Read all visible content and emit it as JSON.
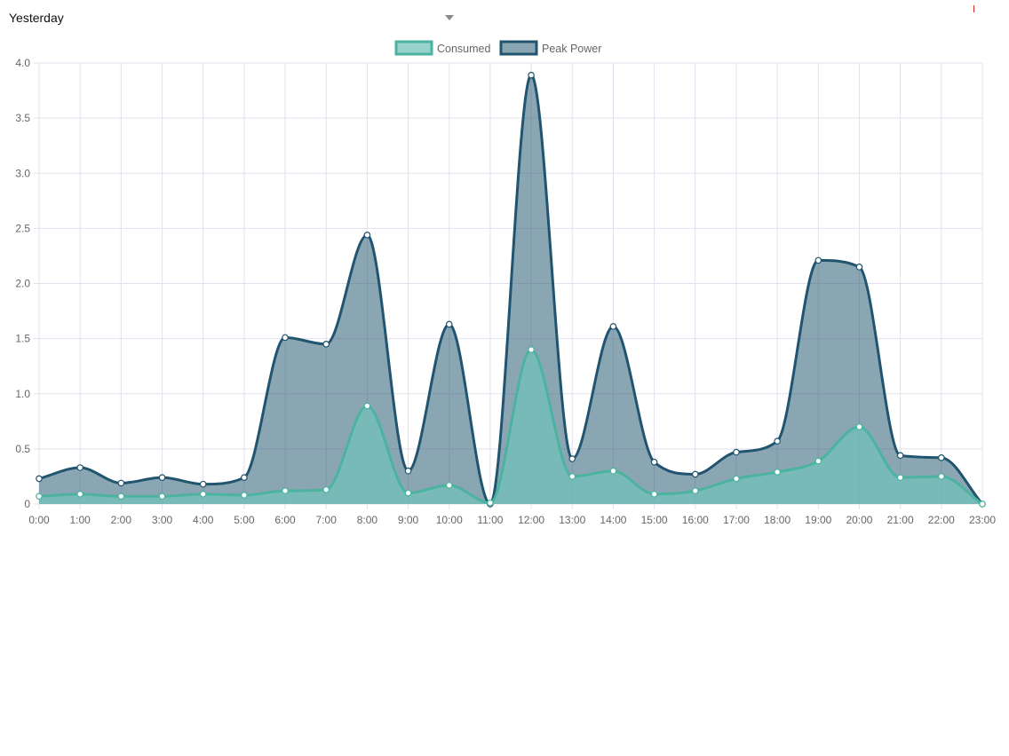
{
  "period_select": {
    "value": "Yesterday",
    "caret_icon": "chevron-down-icon"
  },
  "chart_data": {
    "type": "area",
    "x": [
      "0:00",
      "1:00",
      "2:00",
      "3:00",
      "4:00",
      "5:00",
      "6:00",
      "7:00",
      "8:00",
      "9:00",
      "10:00",
      "11:00",
      "12:00",
      "13:00",
      "14:00",
      "15:00",
      "16:00",
      "17:00",
      "18:00",
      "19:00",
      "20:00",
      "21:00",
      "22:00",
      "23:00"
    ],
    "y_ticks": [
      "0",
      "0.5",
      "1.0",
      "1.5",
      "2.0",
      "2.5",
      "3.0",
      "3.5",
      "4.0"
    ],
    "ylim": [
      0,
      4
    ],
    "grid": true,
    "legend_position": "top-center",
    "series": [
      {
        "name": "Consumed",
        "values": [
          0.07,
          0.09,
          0.07,
          0.07,
          0.09,
          0.08,
          0.12,
          0.13,
          0.89,
          0.1,
          0.17,
          0.01,
          1.4,
          0.25,
          0.3,
          0.09,
          0.12,
          0.23,
          0.29,
          0.39,
          0.7,
          0.24,
          0.25,
          0.0
        ],
        "line_color": "#4bb3a0",
        "fill_color": "rgba(112,194,184,0.72)",
        "point_fill": "#ffffff"
      },
      {
        "name": "Peak Power",
        "values": [
          0.23,
          0.33,
          0.19,
          0.24,
          0.18,
          0.24,
          1.51,
          1.45,
          2.44,
          0.3,
          1.63,
          0.0,
          3.89,
          0.41,
          1.61,
          0.38,
          0.27,
          0.47,
          0.57,
          2.21,
          2.15,
          0.44,
          0.42,
          0.0
        ],
        "line_color": "#21546e",
        "fill_color": "rgba(33,84,110,0.52)",
        "point_fill": "#ffffff"
      }
    ]
  }
}
